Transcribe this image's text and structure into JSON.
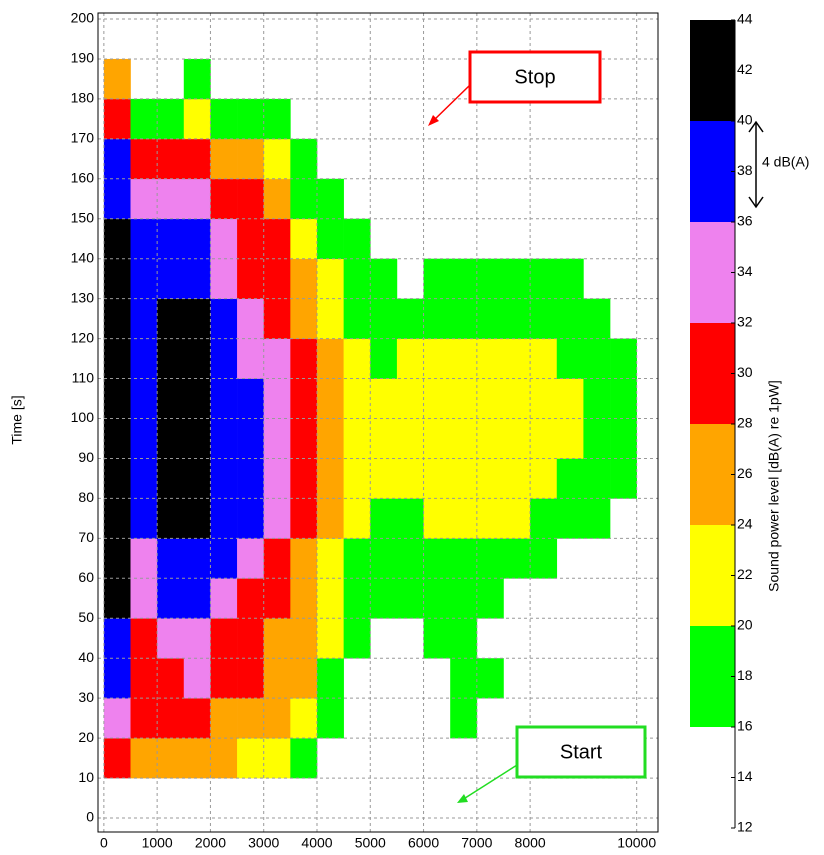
{
  "chart_data": {
    "type": "heatmap",
    "ylabel": "Time  [s]",
    "x_bins": [
      0,
      500,
      1000,
      1500,
      2000,
      2500,
      3000,
      3500,
      4000,
      4500,
      5000,
      5500,
      6000,
      6500,
      7000,
      7500,
      8000,
      8500,
      9000,
      9500,
      10000,
      10500
    ],
    "y_bins": [
      10,
      20,
      30,
      40,
      50,
      60,
      70,
      80,
      90,
      100,
      110,
      120,
      130,
      140,
      150,
      160,
      170,
      180,
      190
    ],
    "values": [
      [
        30,
        26,
        26,
        26,
        26,
        22,
        22,
        18,
        null,
        null,
        null,
        null,
        null,
        null,
        null,
        null,
        null,
        null,
        null,
        null,
        null
      ],
      [
        34,
        30,
        30,
        30,
        26,
        26,
        26,
        22,
        18,
        null,
        null,
        null,
        null,
        18,
        null,
        null,
        null,
        null,
        null,
        null,
        null
      ],
      [
        38,
        30,
        30,
        34,
        30,
        30,
        26,
        26,
        18,
        null,
        null,
        null,
        null,
        18,
        18,
        null,
        null,
        null,
        null,
        null,
        null
      ],
      [
        38,
        30,
        34,
        34,
        30,
        30,
        26,
        26,
        22,
        18,
        null,
        null,
        18,
        18,
        null,
        null,
        null,
        null,
        null,
        null,
        null
      ],
      [
        42,
        34,
        38,
        38,
        34,
        30,
        30,
        26,
        22,
        18,
        18,
        18,
        18,
        18,
        18,
        null,
        null,
        null,
        null,
        null,
        null
      ],
      [
        42,
        34,
        38,
        38,
        38,
        34,
        30,
        26,
        22,
        18,
        18,
        18,
        18,
        18,
        18,
        18,
        18,
        null,
        null,
        null,
        null
      ],
      [
        42,
        38,
        42,
        42,
        38,
        38,
        34,
        30,
        26,
        22,
        18,
        18,
        22,
        22,
        22,
        22,
        18,
        18,
        18,
        null,
        null
      ],
      [
        42,
        38,
        42,
        42,
        38,
        38,
        34,
        30,
        26,
        22,
        22,
        22,
        22,
        22,
        22,
        22,
        22,
        18,
        18,
        18,
        null
      ],
      [
        42,
        38,
        42,
        42,
        38,
        38,
        34,
        30,
        26,
        22,
        22,
        22,
        22,
        22,
        22,
        22,
        22,
        22,
        18,
        18,
        null
      ],
      [
        42,
        38,
        42,
        42,
        38,
        38,
        34,
        30,
        26,
        22,
        22,
        22,
        22,
        22,
        22,
        22,
        22,
        22,
        18,
        18,
        null
      ],
      [
        42,
        38,
        42,
        42,
        38,
        34,
        34,
        30,
        26,
        22,
        18,
        22,
        22,
        22,
        22,
        22,
        22,
        18,
        18,
        18,
        null
      ],
      [
        42,
        38,
        42,
        42,
        38,
        34,
        30,
        26,
        22,
        18,
        18,
        18,
        18,
        18,
        18,
        18,
        18,
        18,
        18,
        null,
        null
      ],
      [
        42,
        38,
        38,
        38,
        34,
        30,
        30,
        26,
        22,
        18,
        18,
        null,
        18,
        18,
        18,
        18,
        18,
        18,
        null,
        null,
        null
      ],
      [
        42,
        38,
        38,
        38,
        34,
        30,
        30,
        22,
        18,
        18,
        null,
        null,
        null,
        null,
        null,
        null,
        null,
        null,
        null,
        null,
        null
      ],
      [
        38,
        34,
        34,
        34,
        30,
        30,
        26,
        18,
        18,
        null,
        null,
        null,
        null,
        null,
        null,
        null,
        null,
        null,
        null,
        null,
        null
      ],
      [
        38,
        30,
        30,
        30,
        26,
        26,
        22,
        18,
        null,
        null,
        null,
        null,
        null,
        null,
        null,
        null,
        null,
        null,
        null,
        null,
        null
      ],
      [
        30,
        18,
        18,
        22,
        18,
        18,
        18,
        null,
        null,
        null,
        null,
        null,
        null,
        null,
        null,
        null,
        null,
        null,
        null,
        null,
        null
      ],
      [
        26,
        null,
        null,
        18,
        null,
        null,
        null,
        null,
        null,
        null,
        null,
        null,
        null,
        null,
        null,
        null,
        null,
        null,
        null,
        null,
        null
      ]
    ],
    "xlim": [
      -110,
      10400
    ],
    "xticks": [
      0,
      1000,
      2000,
      3000,
      4000,
      5000,
      6000,
      7000,
      8000,
      10000
    ],
    "ylim": [
      -3.5,
      201.5
    ],
    "yticks": [
      0,
      10,
      20,
      30,
      40,
      50,
      60,
      70,
      80,
      90,
      100,
      110,
      120,
      130,
      140,
      150,
      160,
      170,
      180,
      190,
      200
    ],
    "grid": true,
    "colorbar": {
      "label": "Sound power level [dB(A) re 1pW]",
      "lim": [
        12,
        44
      ],
      "ticks": [
        12,
        14,
        16,
        18,
        20,
        22,
        24,
        26,
        28,
        30,
        32,
        34,
        36,
        38,
        40,
        42,
        44
      ],
      "levels": [
        16,
        20,
        24,
        28,
        32,
        36,
        40,
        44
      ],
      "colors": [
        "#00ff00",
        "#ffff00",
        "#ffa500",
        "#ff0000",
        "#ee82ee",
        "#0000ff",
        "#000000"
      ]
    },
    "annotations": [
      "Stop",
      "Start",
      "4 dB(A)"
    ]
  }
}
